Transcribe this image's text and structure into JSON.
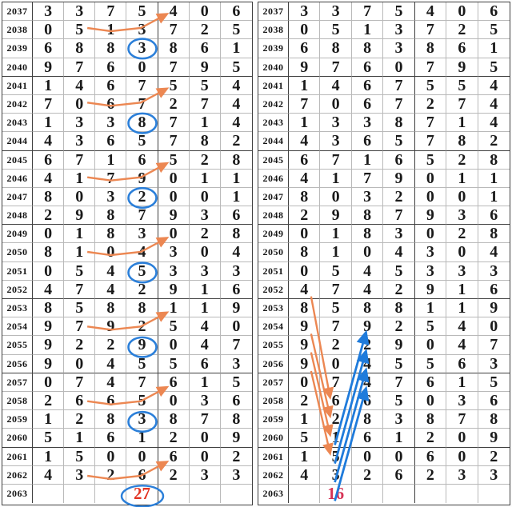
{
  "chart_data": {
    "type": "table",
    "title": "",
    "description_semantics": "two identical lottery draw-number trend tables, rows are draw periods 2037-2063, seven digit columns",
    "row_labels": [
      "2037",
      "2038",
      "2039",
      "2040",
      "2041",
      "2042",
      "2043",
      "2044",
      "2045",
      "2046",
      "2047",
      "2048",
      "2049",
      "2050",
      "2051",
      "2052",
      "2053",
      "2054",
      "2055",
      "2056",
      "2057",
      "2058",
      "2059",
      "2060",
      "2061",
      "2062",
      "2063"
    ],
    "left_annotation_result": "27",
    "right_annotation_result": "16"
  },
  "rows": [
    {
      "label": "2037",
      "digits": [
        "3",
        "3",
        "7",
        "5",
        "4",
        "0",
        "6"
      ]
    },
    {
      "label": "2038",
      "digits": [
        "0",
        "5",
        "1",
        "3",
        "7",
        "2",
        "5"
      ]
    },
    {
      "label": "2039",
      "digits": [
        "6",
        "8",
        "8",
        "3",
        "8",
        "6",
        "1"
      ]
    },
    {
      "label": "2040",
      "digits": [
        "9",
        "7",
        "6",
        "0",
        "7",
        "9",
        "5"
      ]
    },
    {
      "label": "2041",
      "digits": [
        "1",
        "4",
        "6",
        "7",
        "5",
        "5",
        "4"
      ]
    },
    {
      "label": "2042",
      "digits": [
        "7",
        "0",
        "6",
        "7",
        "2",
        "7",
        "4"
      ]
    },
    {
      "label": "2043",
      "digits": [
        "1",
        "3",
        "3",
        "8",
        "7",
        "1",
        "4"
      ]
    },
    {
      "label": "2044",
      "digits": [
        "4",
        "3",
        "6",
        "5",
        "7",
        "8",
        "2"
      ]
    },
    {
      "label": "2045",
      "digits": [
        "6",
        "7",
        "1",
        "6",
        "5",
        "2",
        "8"
      ]
    },
    {
      "label": "2046",
      "digits": [
        "4",
        "1",
        "7",
        "9",
        "0",
        "1",
        "1"
      ]
    },
    {
      "label": "2047",
      "digits": [
        "8",
        "0",
        "3",
        "2",
        "0",
        "0",
        "1"
      ]
    },
    {
      "label": "2048",
      "digits": [
        "2",
        "9",
        "8",
        "7",
        "9",
        "3",
        "6"
      ]
    },
    {
      "label": "2049",
      "digits": [
        "0",
        "1",
        "8",
        "3",
        "0",
        "2",
        "8"
      ]
    },
    {
      "label": "2050",
      "digits": [
        "8",
        "1",
        "0",
        "4",
        "3",
        "0",
        "4"
      ]
    },
    {
      "label": "2051",
      "digits": [
        "0",
        "5",
        "4",
        "5",
        "3",
        "3",
        "3"
      ]
    },
    {
      "label": "2052",
      "digits": [
        "4",
        "7",
        "4",
        "2",
        "9",
        "1",
        "6"
      ]
    },
    {
      "label": "2053",
      "digits": [
        "8",
        "5",
        "8",
        "8",
        "1",
        "1",
        "9"
      ]
    },
    {
      "label": "2054",
      "digits": [
        "9",
        "7",
        "9",
        "2",
        "5",
        "4",
        "0"
      ]
    },
    {
      "label": "2055",
      "digits": [
        "9",
        "2",
        "2",
        "9",
        "0",
        "4",
        "7"
      ]
    },
    {
      "label": "2056",
      "digits": [
        "9",
        "0",
        "4",
        "5",
        "5",
        "6",
        "3"
      ]
    },
    {
      "label": "2057",
      "digits": [
        "0",
        "7",
        "4",
        "7",
        "6",
        "1",
        "5"
      ]
    },
    {
      "label": "2058",
      "digits": [
        "2",
        "6",
        "6",
        "5",
        "0",
        "3",
        "6"
      ]
    },
    {
      "label": "2059",
      "digits": [
        "1",
        "2",
        "8",
        "3",
        "8",
        "7",
        "8"
      ]
    },
    {
      "label": "2060",
      "digits": [
        "5",
        "1",
        "6",
        "1",
        "2",
        "0",
        "9"
      ]
    },
    {
      "label": "2061",
      "digits": [
        "1",
        "5",
        "0",
        "0",
        "6",
        "0",
        "2"
      ]
    },
    {
      "label": "2062",
      "digits": [
        "4",
        "3",
        "2",
        "6",
        "2",
        "3",
        "3"
      ]
    }
  ],
  "left_table": {
    "bottom_row": {
      "label": "2063",
      "value": "27",
      "col": 4,
      "circled": true
    },
    "circles": [
      {
        "year": 2039,
        "col": 4
      },
      {
        "year": 2043,
        "col": 4
      },
      {
        "year": 2047,
        "col": 4
      },
      {
        "year": 2051,
        "col": 4
      },
      {
        "year": 2055,
        "col": 4
      },
      {
        "year": 2059,
        "col": 4
      }
    ],
    "polylines": [
      {
        "year": 2038,
        "cols": [
          2,
          3,
          4
        ],
        "toYear": 2037,
        "toCol": 5
      },
      {
        "year": 2042,
        "cols": [
          2,
          3,
          4
        ],
        "toYear": 2041,
        "toCol": 5
      },
      {
        "year": 2046,
        "cols": [
          2,
          3,
          4
        ],
        "toYear": 2045,
        "toCol": 5
      },
      {
        "year": 2050,
        "cols": [
          2,
          3,
          4
        ],
        "toYear": 2049,
        "toCol": 5
      },
      {
        "year": 2054,
        "cols": [
          2,
          3,
          4
        ],
        "toYear": 2053,
        "toCol": 5
      },
      {
        "year": 2058,
        "cols": [
          2,
          3,
          4
        ],
        "toYear": 2057,
        "toCol": 5
      },
      {
        "year": 2062,
        "cols": [
          2,
          3,
          4
        ],
        "toYear": 2061,
        "toCol": 5
      }
    ]
  },
  "right_table": {
    "bottom_row": {
      "label": "2063",
      "value": "16",
      "col": 2,
      "circled": false
    },
    "orange_lines": [
      {
        "fromYear": 2052,
        "fromCol": 1,
        "toYear": 2058,
        "toCol": 2
      },
      {
        "fromYear": 2054,
        "fromCol": 1,
        "toYear": 2059,
        "toCol": 2
      },
      {
        "fromYear": 2055,
        "fromCol": 1,
        "toYear": 2060,
        "toCol": 2
      },
      {
        "fromYear": 2056,
        "fromCol": 1,
        "toYear": 2061,
        "toCol": 2
      }
    ],
    "blue_lines": [
      {
        "fromYear": 2060,
        "fromCol": 2,
        "toYear": 2054,
        "toCol": 3
      },
      {
        "fromYear": 2061,
        "fromCol": 2,
        "toYear": 2055,
        "toCol": 3
      },
      {
        "fromYear": 2062,
        "fromCol": 2,
        "toYear": 2056,
        "toCol": 3
      },
      {
        "fromYear": 2063,
        "fromCol": 2,
        "toYear": 2057,
        "toCol": 3
      }
    ]
  },
  "colors": {
    "orange_line": "#ec8752",
    "blue_line": "#1f7bdb",
    "circle_blue": "#2b7fd9",
    "red_left": "#e23322",
    "red_right": "#d63355",
    "grid_light": "#b9b9b9",
    "grid_dark": "#3f3f3f",
    "digit": "#1a1a1a"
  }
}
